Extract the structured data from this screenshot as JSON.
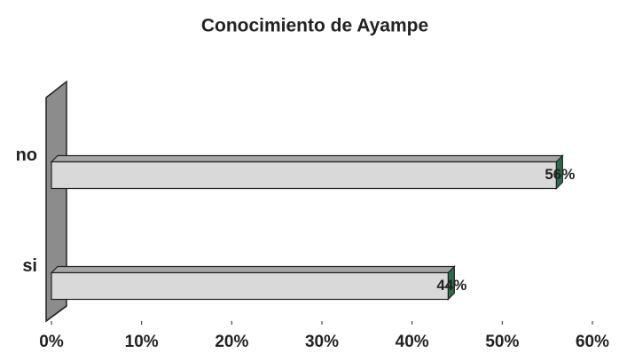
{
  "chart_data": {
    "type": "bar",
    "orientation": "horizontal",
    "title": "Conocimiento de Ayampe",
    "categories": [
      "no",
      "si"
    ],
    "values": [
      56,
      44
    ],
    "value_labels": [
      "56%",
      "44%"
    ],
    "color": "#d9d9d9",
    "xlim": [
      0,
      60
    ],
    "xticks": [
      {
        "value": 0,
        "label": "0%"
      },
      {
        "value": 10,
        "label": "10%"
      },
      {
        "value": 20,
        "label": "20%"
      },
      {
        "value": 30,
        "label": "30%"
      },
      {
        "value": 40,
        "label": "40%"
      },
      {
        "value": 50,
        "label": "50%"
      },
      {
        "value": 60,
        "label": "60%"
      }
    ]
  }
}
